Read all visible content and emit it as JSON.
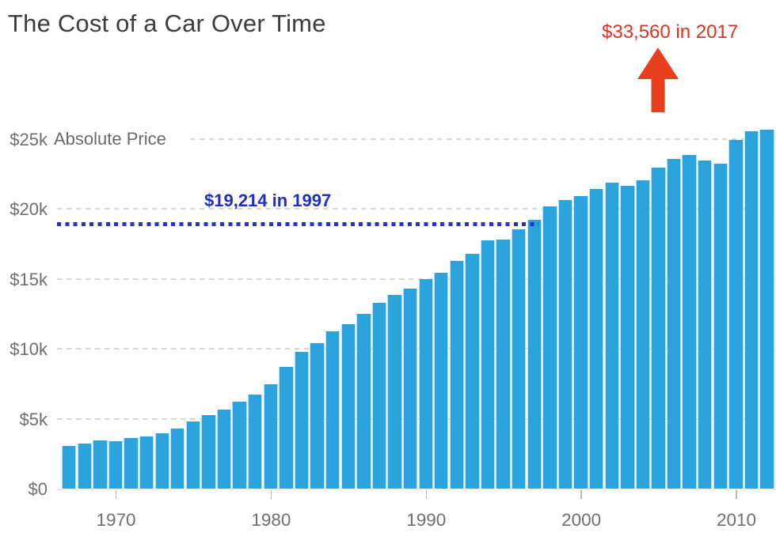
{
  "title": "The Cost of a Car Over Time",
  "annotations": {
    "future_price_callout": {
      "text": "$33,560 in 2017",
      "color": "#da3420"
    },
    "reference_callout": {
      "text": "$19,214 in 1997",
      "color": "#1f2ec9"
    },
    "series_label": "Absolute Price"
  },
  "chart_data": {
    "type": "bar",
    "title": "The Cost of a Car Over Time",
    "series_name": "Absolute Price",
    "x": [
      1967,
      1968,
      1969,
      1970,
      1971,
      1972,
      1973,
      1974,
      1975,
      1976,
      1977,
      1978,
      1979,
      1980,
      1981,
      1982,
      1983,
      1984,
      1985,
      1986,
      1987,
      1988,
      1989,
      1990,
      1991,
      1992,
      1993,
      1994,
      1995,
      1996,
      1997,
      1998,
      1999,
      2000,
      2001,
      2002,
      2003,
      2004,
      2005,
      2006,
      2007,
      2008,
      2009,
      2010,
      2011,
      2012
    ],
    "values": [
      3050,
      3230,
      3450,
      3420,
      3620,
      3760,
      3950,
      4320,
      4830,
      5240,
      5670,
      6210,
      6710,
      7470,
      8730,
      9770,
      10430,
      11240,
      11750,
      12520,
      13310,
      13870,
      14300,
      15000,
      15420,
      16270,
      16800,
      17740,
      17830,
      18540,
      19214,
      20190,
      20660,
      20950,
      21420,
      21890,
      21660,
      22040,
      22980,
      23590,
      23870,
      23460,
      23250,
      24940,
      25570,
      25660
    ],
    "xlabel": "",
    "ylabel": "",
    "ylim": [
      0,
      26500
    ],
    "ytick_values": [
      0,
      5000,
      10000,
      15000,
      20000,
      25000
    ],
    "ytick_labels": [
      "$0",
      "$5k",
      "$10k",
      "$15k",
      "$20k",
      "$25k"
    ],
    "xtick_values": [
      1970,
      1980,
      1990,
      2000,
      2010
    ],
    "xtick_labels": [
      "1970",
      "1980",
      "1990",
      "2000",
      "2010"
    ],
    "grid": "horizontal dashed",
    "legend": "none",
    "bar_color": "#2ba3dc",
    "bar_gap_color": "#b5e4f8",
    "reference_line": {
      "value": 19214,
      "year": 1997,
      "label": "$19,214 in 1997",
      "style": "dotted",
      "color": "#2333cb"
    },
    "callout": {
      "label": "$33,560 in 2017",
      "value": 33560,
      "year": 2017,
      "color": "#da3420",
      "marker": "up-arrow"
    }
  }
}
